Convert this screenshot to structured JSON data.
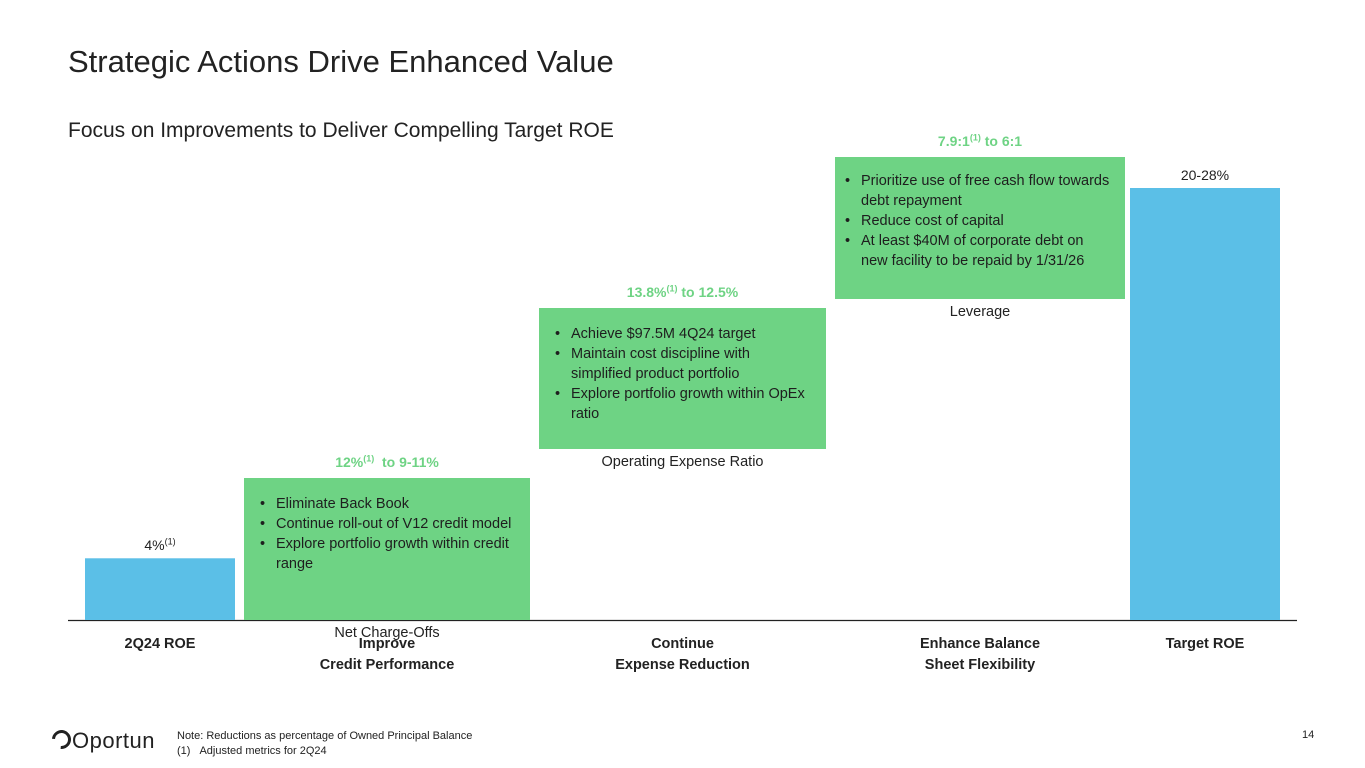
{
  "title": "Strategic Actions Drive Enhanced Value",
  "subtitle": "Focus on Improvements to Deliver Compelling Target ROE",
  "colors": {
    "bar": "#5bbfe7",
    "box": "#6ed384",
    "metric_text": "#6ed384",
    "axis": "#222222"
  },
  "chart_data": {
    "type": "bar",
    "subtype": "waterfall",
    "categories": [
      [
        "2Q24 ROE"
      ],
      [
        "Improve",
        "Credit Performance"
      ],
      [
        "Continue",
        "Expense Reduction"
      ],
      [
        "Enhance Balance",
        "Sheet Flexibility"
      ],
      [
        "Target ROE"
      ]
    ],
    "bars": [
      {
        "category_index": 0,
        "value": 4,
        "label_main": "4%",
        "label_sup": "(1)"
      },
      {
        "category_index": 4,
        "value": 28,
        "label_main": "20-28%",
        "label_sup": ""
      }
    ],
    "ylim": [
      0,
      28
    ],
    "grid": false,
    "steps": [
      {
        "category_index": 1,
        "metric_parts": [
          "12%",
          "(1)",
          "  to 9-11%"
        ],
        "caption": "Net Charge-Offs",
        "start": 0,
        "end": 9.2,
        "bullets": [
          "Eliminate Back Book",
          "Continue roll-out of V12 credit model",
          "Explore portfolio growth within credit range"
        ]
      },
      {
        "category_index": 2,
        "metric_parts": [
          "13.8%",
          "(1)",
          " to 12.5%"
        ],
        "caption": "Operating Expense Ratio",
        "start": 11.1,
        "end": 20.2,
        "bullets": [
          "Achieve $97.5M 4Q24 target",
          "Maintain cost discipline with simplified product portfolio",
          "Explore portfolio growth within OpEx ratio"
        ]
      },
      {
        "category_index": 3,
        "metric_parts": [
          "7.9:1",
          "(1)",
          " to 6:1"
        ],
        "caption": "Leverage",
        "start": 20.8,
        "end": 30.0,
        "bullets": [
          "Prioritize use of free cash flow towards debt repayment",
          "Reduce cost of capital",
          "At least $40M of corporate debt on new facility to be repaid by 1/31/26"
        ]
      }
    ]
  },
  "footer": {
    "logo": "Oportun",
    "note": "Note: Reductions as percentage of Owned Principal Balance",
    "footnote_number": "(1)",
    "footnote_text": "Adjusted metrics for 2Q24",
    "page_number": "14"
  }
}
